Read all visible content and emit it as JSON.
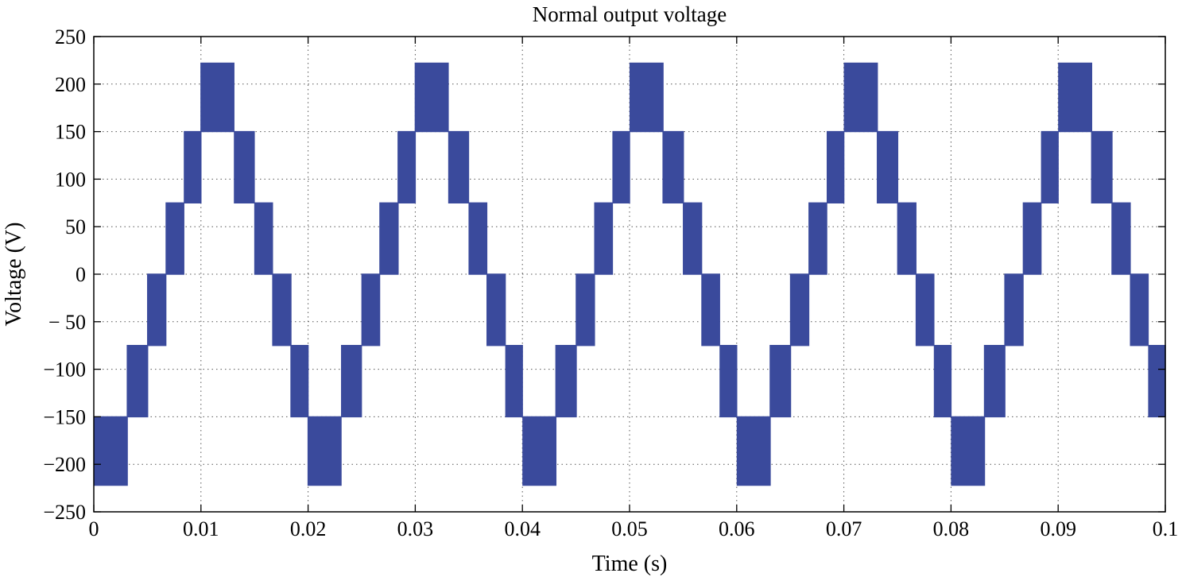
{
  "chart_data": {
    "type": "line",
    "title": "Normal output voltage",
    "xlabel": "Time (s)",
    "ylabel": "Voltage (V)",
    "xlim": [
      0,
      0.1
    ],
    "ylim": [
      -250,
      250
    ],
    "x_ticks": [
      0,
      0.01,
      0.02,
      0.03,
      0.04,
      0.05,
      0.06,
      0.07,
      0.08,
      0.09,
      0.1
    ],
    "x_tick_labels": [
      "0",
      "0.01",
      "0.02",
      "0.03",
      "0.04",
      "0.05",
      "0.06",
      "0.07",
      "0.08",
      "0.09",
      "0.1"
    ],
    "y_ticks": [
      250,
      200,
      150,
      100,
      50,
      0,
      -50,
      -100,
      -150,
      -200,
      -250
    ],
    "y_tick_labels": [
      "250",
      "200",
      "150",
      "100",
      "50",
      "0",
      "− 50",
      "−100",
      "−150",
      "−200",
      "−250"
    ],
    "grid": true,
    "grid_style": "dotted",
    "legend": false,
    "series_color": "#3a4a9c",
    "signal": {
      "description_type": "multilevel PWM staircase",
      "fundamental_frequency_hz": 50,
      "levels_v": [
        0,
        75,
        150,
        222
      ],
      "half_cycle_envelope": [
        {
          "t_start": 0.0067,
          "t_end": 0.0084,
          "level": 75
        },
        {
          "t_start": 0.0084,
          "t_end": 0.01,
          "level": 150
        },
        {
          "t_start": 0.01,
          "t_end": 0.0131,
          "level": 222
        },
        {
          "t_start": 0.0131,
          "t_end": 0.015,
          "level": 150
        },
        {
          "t_start": 0.015,
          "t_end": 0.0167,
          "level": 75
        }
      ]
    }
  }
}
